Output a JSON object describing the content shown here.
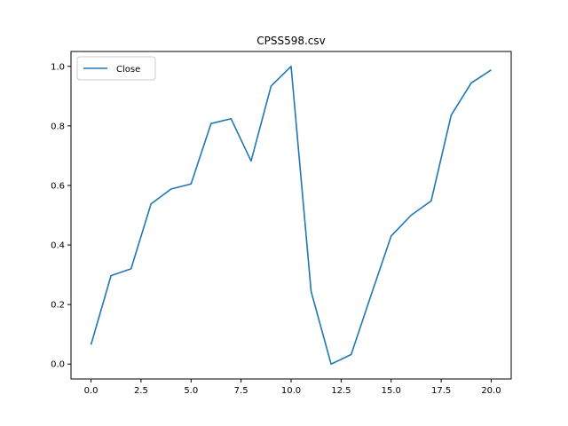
{
  "chart_data": {
    "type": "line",
    "title": "CPSS598.csv",
    "xlabel": "",
    "ylabel": "",
    "xlim": [
      -1,
      21
    ],
    "ylim": [
      -0.05,
      1.05
    ],
    "x_ticks": [
      0,
      2.5,
      5,
      7.5,
      10,
      12.5,
      15,
      17.5,
      20
    ],
    "x_tick_labels": [
      "0.0",
      "2.5",
      "5.0",
      "7.5",
      "10.0",
      "12.5",
      "15.0",
      "17.5",
      "20.0"
    ],
    "y_ticks": [
      0,
      0.2,
      0.4,
      0.6,
      0.8,
      1.0
    ],
    "y_tick_labels": [
      "0.0",
      "0.2",
      "0.4",
      "0.6",
      "0.8",
      "1.0"
    ],
    "grid": false,
    "legend": "top-left",
    "series": [
      {
        "name": "Close",
        "color": "#1f77b4",
        "x": [
          0,
          1,
          2,
          3,
          4,
          5,
          6,
          7,
          8,
          9,
          10,
          11,
          12,
          13,
          14,
          15,
          16,
          17,
          18,
          19,
          20
        ],
        "values": [
          0.065,
          0.297,
          0.32,
          0.538,
          0.588,
          0.605,
          0.808,
          0.824,
          0.682,
          0.934,
          1.0,
          0.244,
          0.0,
          0.032,
          0.232,
          0.43,
          0.5,
          0.548,
          0.836,
          0.944,
          0.988
        ]
      }
    ]
  }
}
